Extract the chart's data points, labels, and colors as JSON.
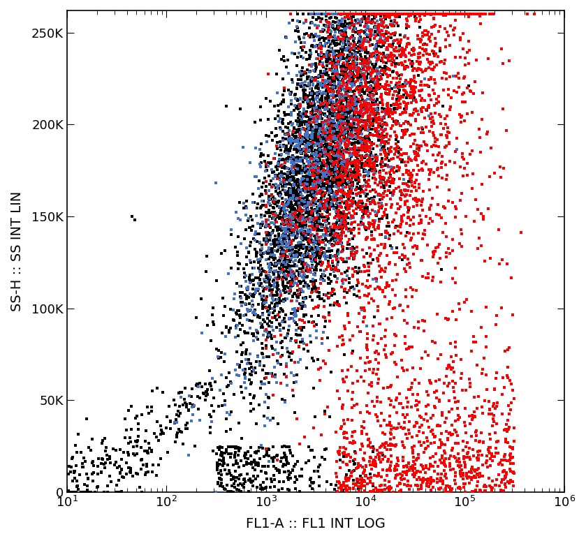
{
  "title": "",
  "xlabel": "FL1-A :: FL1 INT LOG",
  "ylabel": "SS-H :: SS INT LIN",
  "xlim_log": [
    10,
    1000000
  ],
  "ylim": [
    0,
    262000
  ],
  "yticks": [
    0,
    50000,
    100000,
    150000,
    200000,
    250000
  ],
  "ytick_labels": [
    "0",
    "50K",
    "100K",
    "150K",
    "200K",
    "250K"
  ],
  "background_color": "#ffffff",
  "colors": {
    "black": "#000000",
    "blue": "#4472C4",
    "red": "#FF0000"
  },
  "marker_size": 5,
  "seed": 42
}
